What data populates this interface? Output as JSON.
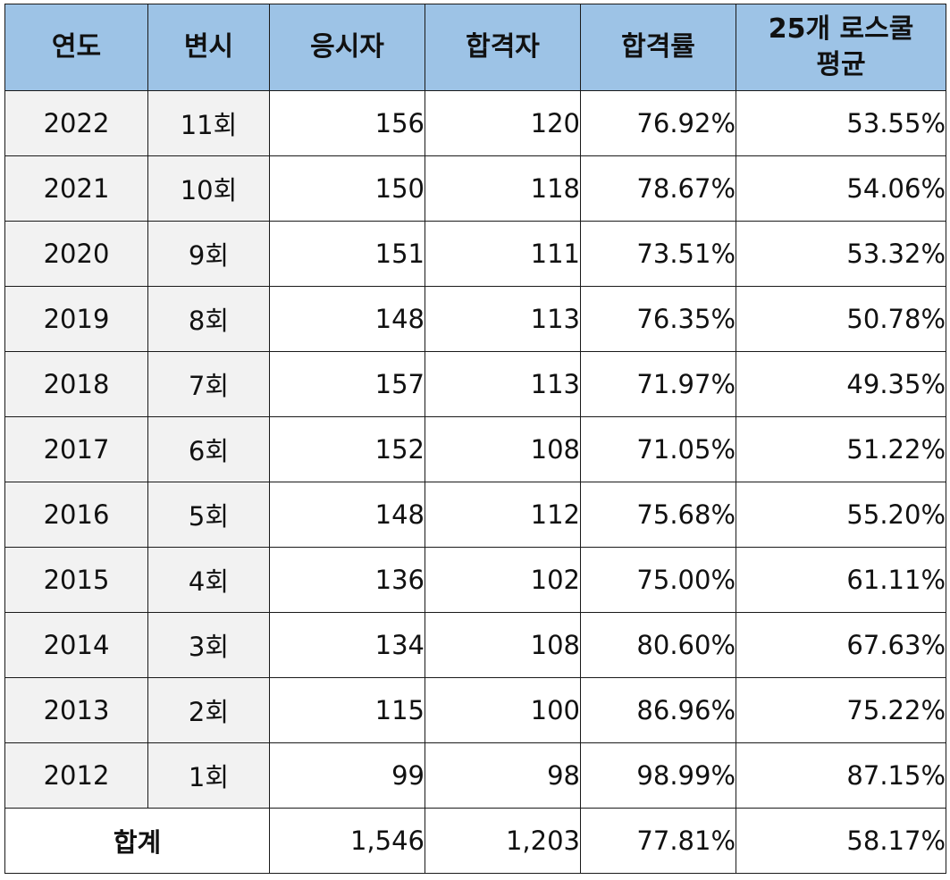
{
  "table": {
    "headers": {
      "year": "연도",
      "exam": "변시",
      "applicants": "응시자",
      "passers": "합격자",
      "pass_rate": "합격률",
      "avg_line1": "25개 로스쿨",
      "avg_line2": "평균"
    },
    "rows": [
      {
        "year": "2022",
        "exam": "11회",
        "applicants": "156",
        "passers": "120",
        "pass_rate": "76.92%",
        "avg": "53.55%"
      },
      {
        "year": "2021",
        "exam": "10회",
        "applicants": "150",
        "passers": "118",
        "pass_rate": "78.67%",
        "avg": "54.06%"
      },
      {
        "year": "2020",
        "exam": "9회",
        "applicants": "151",
        "passers": "111",
        "pass_rate": "73.51%",
        "avg": "53.32%"
      },
      {
        "year": "2019",
        "exam": "8회",
        "applicants": "148",
        "passers": "113",
        "pass_rate": "76.35%",
        "avg": "50.78%"
      },
      {
        "year": "2018",
        "exam": "7회",
        "applicants": "157",
        "passers": "113",
        "pass_rate": "71.97%",
        "avg": "49.35%"
      },
      {
        "year": "2017",
        "exam": "6회",
        "applicants": "152",
        "passers": "108",
        "pass_rate": "71.05%",
        "avg": "51.22%"
      },
      {
        "year": "2016",
        "exam": "5회",
        "applicants": "148",
        "passers": "112",
        "pass_rate": "75.68%",
        "avg": "55.20%"
      },
      {
        "year": "2015",
        "exam": "4회",
        "applicants": "136",
        "passers": "102",
        "pass_rate": "75.00%",
        "avg": "61.11%"
      },
      {
        "year": "2014",
        "exam": "3회",
        "applicants": "134",
        "passers": "108",
        "pass_rate": "80.60%",
        "avg": "67.63%"
      },
      {
        "year": "2013",
        "exam": "2회",
        "applicants": "115",
        "passers": "100",
        "pass_rate": "86.96%",
        "avg": "75.22%"
      },
      {
        "year": "2012",
        "exam": "1회",
        "applicants": "99",
        "passers": "98",
        "pass_rate": "98.99%",
        "avg": "87.15%"
      }
    ],
    "total": {
      "label": "합계",
      "applicants": "1,546",
      "passers": "1,203",
      "pass_rate": "77.81%",
      "avg": "58.17%"
    }
  }
}
